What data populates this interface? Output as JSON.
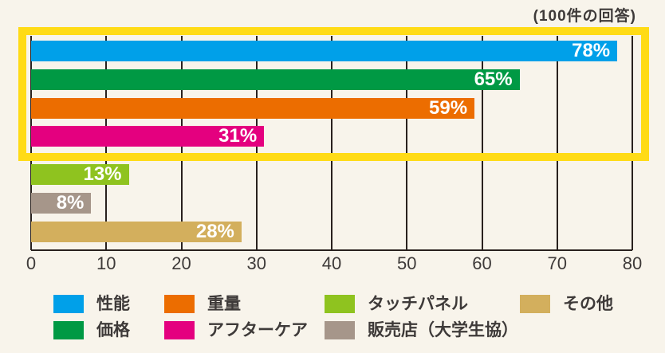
{
  "chart_data": {
    "type": "bar",
    "orientation": "horizontal",
    "title": "(100件の回答)",
    "categories": [
      "性能",
      "価格",
      "重量",
      "アフターケア",
      "タッチパネル",
      "販売店（大学生協）",
      "その他"
    ],
    "values": [
      78,
      65,
      59,
      31,
      13,
      8,
      28
    ],
    "value_labels": [
      "78%",
      "65%",
      "59%",
      "31%",
      "13%",
      "8%",
      "28%"
    ],
    "colors": [
      "#00A0E9",
      "#009944",
      "#EC6D00",
      "#E4007F",
      "#8FC31F",
      "#A6968A",
      "#D3AF5D"
    ],
    "xlim": [
      0,
      80
    ],
    "xticks": [
      0,
      10,
      20,
      30,
      40,
      50,
      60,
      70,
      80
    ],
    "grid": true,
    "ylabel": "",
    "xlabel": "",
    "highlight_box": {
      "color": "#FFDB16",
      "framed_categories": [
        "性能",
        "価格",
        "重量",
        "アフターケア"
      ]
    },
    "legend": {
      "position": "bottom",
      "rows": [
        [
          {
            "label": "性能",
            "color": "#00A0E9"
          },
          {
            "label": "重量",
            "color": "#EC6D00"
          },
          {
            "label": "タッチパネル",
            "color": "#8FC31F"
          },
          {
            "label": "その他",
            "color": "#D3AF5D"
          }
        ],
        [
          {
            "label": "価格",
            "color": "#009944"
          },
          {
            "label": "アフターケア",
            "color": "#E4007F"
          },
          {
            "label": "販売店（大学生協）",
            "color": "#A6968A"
          }
        ]
      ]
    },
    "style": {
      "background": "#F8F4EB",
      "text_color": "#3E3A39",
      "gridline_color": "#29211E",
      "bar_label_color": "#FFFFFF"
    }
  }
}
